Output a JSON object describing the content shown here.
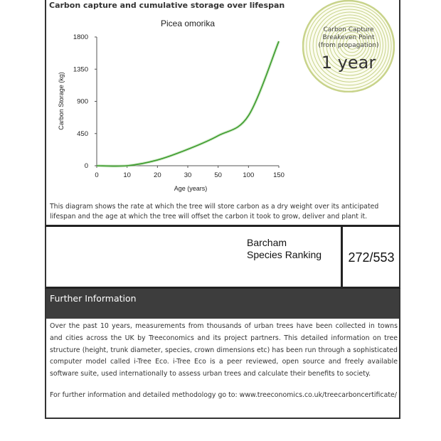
{
  "section_title": "Carbon capture and cumulative storage over lifespan",
  "chart_data": {
    "type": "line",
    "title": "Picea omorika",
    "xlabel": "Age (years)",
    "ylabel": "Carbon Storage (kg)",
    "categories": [
      "0",
      "10",
      "20",
      "30",
      "50",
      "100",
      "150"
    ],
    "values": [
      0,
      0,
      80,
      230,
      420,
      700,
      1740
    ],
    "yticks": [
      "0",
      "450",
      "900",
      "1350",
      "1800"
    ],
    "ylim": [
      0,
      1800
    ],
    "grid": false,
    "color": "#3a9a2a"
  },
  "badge": {
    "line1": "Carbon Capture",
    "line2": "Breakeven Point",
    "line3": "(from propagation)",
    "value": "1 year",
    "color": "#c8d38a"
  },
  "caption": "This diagram shows the rate at which the tree will store carbon as a dry weight over its anticipated lifespan and the age at which the tree will offset the carbon it took to grow, deliver and plant it.",
  "ranking": {
    "line1": "Barcham",
    "line2": "Species Ranking",
    "value": "272/553"
  },
  "further": {
    "title": "Further Information",
    "body": "Over the past 10 years, measurements from thousands of urban trees have been collected in towns and cities across the UK by Treeconomics and its project partners. This detailed information on tree structure (height, trunk diameter, species, crown dimensions etc) has been run through a sophisticated computer model called i-Tree Eco. i-Tree Eco is a peer reviewed, open source and freely available software suite, used internationally to assess urban trees and calculate their benefits to society.",
    "link": "For further information and detailed methodology go to: www.treeconomics.co.uk/treecarboncertificate/"
  }
}
